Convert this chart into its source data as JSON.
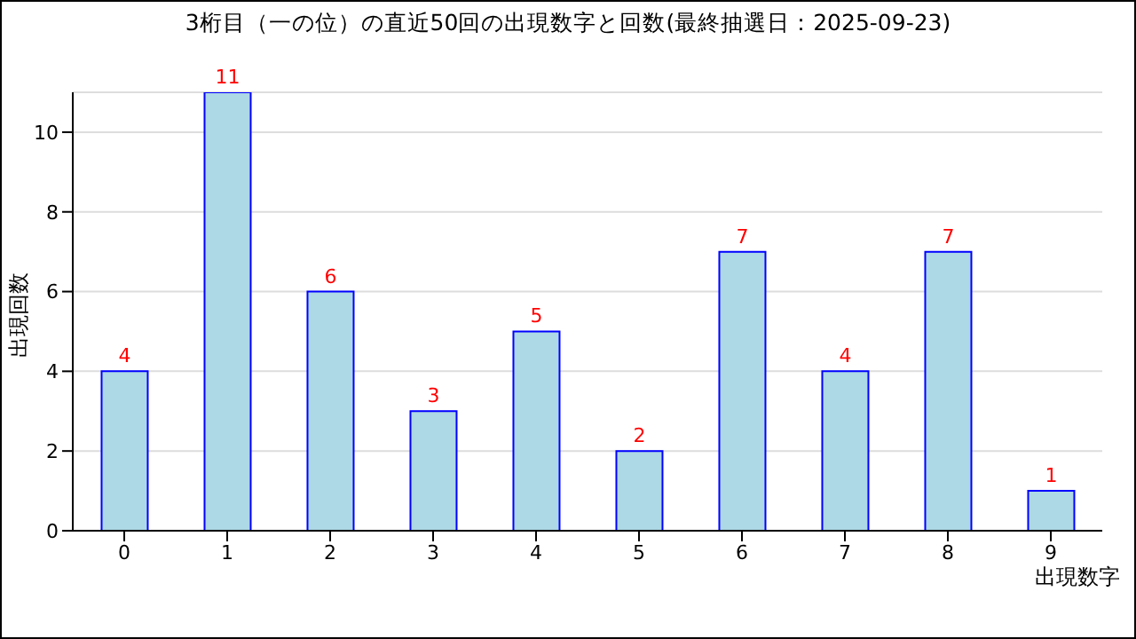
{
  "chart_data": {
    "type": "bar",
    "title": "3桁目（一の位）の直近50回の出現数字と回数(最終抽選日：2025-09-23)",
    "xlabel": "出現数字",
    "ylabel": "出現回数",
    "categories": [
      "0",
      "1",
      "2",
      "3",
      "4",
      "5",
      "6",
      "7",
      "8",
      "9"
    ],
    "series": [
      {
        "color": "#add8e6",
        "values": [
          4,
          11,
          6,
          3,
          5,
          2,
          7,
          4,
          7,
          1
        ]
      }
    ],
    "ylim": [
      0,
      11
    ],
    "yticks": [
      0,
      2,
      4,
      6,
      8,
      10
    ],
    "grid": "y",
    "data_labels": true,
    "legend": false
  }
}
